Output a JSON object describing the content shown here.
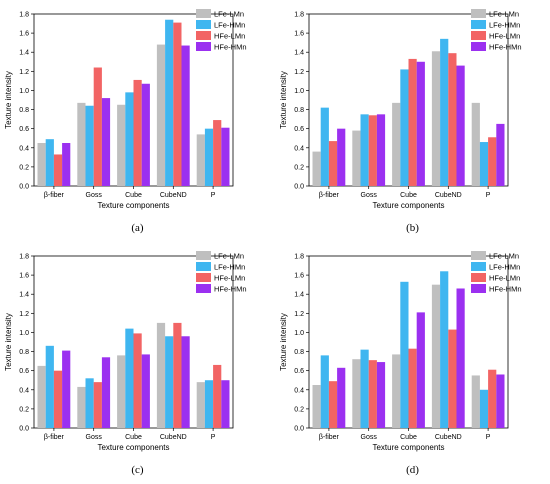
{
  "figure": {
    "panels": [
      {
        "label": "(a)"
      },
      {
        "label": "(b)"
      },
      {
        "label": "(c)"
      },
      {
        "label": "(d)"
      }
    ]
  },
  "chart_data": [
    {
      "type": "bar",
      "title": "",
      "xlabel": "Texture components",
      "ylabel": "Texture intensity",
      "ylim": [
        0,
        1.8
      ],
      "yticks": [
        "0.0",
        "0.2",
        "0.4",
        "0.6",
        "0.8",
        "1.0",
        "1.2",
        "1.4",
        "1.6",
        "1.8"
      ],
      "categories": [
        "β-fiber",
        "Goss",
        "Cube",
        "CubeND",
        "P"
      ],
      "legend_position": "top-right",
      "series": [
        {
          "name": "LFe-LMn",
          "color": "#bfbfbf",
          "values": [
            0.45,
            0.87,
            0.85,
            1.48,
            0.54
          ]
        },
        {
          "name": "LFe-HMn",
          "color": "#3fb6f0",
          "values": [
            0.49,
            0.84,
            0.98,
            1.74,
            0.6
          ]
        },
        {
          "name": "HFe-LMn",
          "color": "#f26464",
          "values": [
            0.33,
            1.24,
            1.11,
            1.71,
            0.69
          ]
        },
        {
          "name": "HFe-HMn",
          "color": "#9b30f0",
          "values": [
            0.45,
            0.92,
            1.07,
            1.47,
            0.61
          ]
        }
      ]
    },
    {
      "type": "bar",
      "title": "",
      "xlabel": "Texture components",
      "ylabel": "Texture intensity",
      "ylim": [
        0,
        1.8
      ],
      "yticks": [
        "0.0",
        "0.2",
        "0.4",
        "0.6",
        "0.8",
        "1.0",
        "1.2",
        "1.4",
        "1.6",
        "1.8"
      ],
      "categories": [
        "β-fiber",
        "Goss",
        "Cube",
        "CubeND",
        "P"
      ],
      "legend_position": "top-right",
      "series": [
        {
          "name": "LFe-LMn",
          "color": "#bfbfbf",
          "values": [
            0.36,
            0.58,
            0.87,
            1.41,
            0.87
          ]
        },
        {
          "name": "LFe-HMn",
          "color": "#3fb6f0",
          "values": [
            0.82,
            0.75,
            1.22,
            1.54,
            0.46
          ]
        },
        {
          "name": "HFe-LMn",
          "color": "#f26464",
          "values": [
            0.47,
            0.74,
            1.33,
            1.39,
            0.51
          ]
        },
        {
          "name": "HFe-HMn",
          "color": "#9b30f0",
          "values": [
            0.6,
            0.75,
            1.3,
            1.26,
            0.65
          ]
        }
      ]
    },
    {
      "type": "bar",
      "title": "",
      "xlabel": "Texture components",
      "ylabel": "Texture intensity",
      "ylim": [
        0,
        1.8
      ],
      "yticks": [
        "0.0",
        "0.2",
        "0.4",
        "0.6",
        "0.8",
        "1.0",
        "1.2",
        "1.4",
        "1.6",
        "1.8"
      ],
      "categories": [
        "β-fiber",
        "Goss",
        "Cube",
        "CubeND",
        "P"
      ],
      "legend_position": "top-right",
      "series": [
        {
          "name": "LFe-LMn",
          "color": "#bfbfbf",
          "values": [
            0.65,
            0.43,
            0.76,
            1.1,
            0.48
          ]
        },
        {
          "name": "LFe-HMn",
          "color": "#3fb6f0",
          "values": [
            0.86,
            0.52,
            1.04,
            0.96,
            0.5
          ]
        },
        {
          "name": "HFe-LMn",
          "color": "#f26464",
          "values": [
            0.6,
            0.48,
            0.99,
            1.1,
            0.66
          ]
        },
        {
          "name": "HFe-HMn",
          "color": "#9b30f0",
          "values": [
            0.81,
            0.74,
            0.77,
            0.96,
            0.5
          ]
        }
      ]
    },
    {
      "type": "bar",
      "title": "",
      "xlabel": "Texture components",
      "ylabel": "Texture intensity",
      "ylim": [
        0,
        1.8
      ],
      "yticks": [
        "0.0",
        "0.2",
        "0.4",
        "0.6",
        "0.8",
        "1.0",
        "1.2",
        "1.4",
        "1.6",
        "1.8"
      ],
      "categories": [
        "β-fiber",
        "Goss",
        "Cube",
        "CubeND",
        "P"
      ],
      "legend_position": "top-right",
      "series": [
        {
          "name": "LFe-LMn",
          "color": "#bfbfbf",
          "values": [
            0.45,
            0.72,
            0.77,
            1.5,
            0.55
          ]
        },
        {
          "name": "LFe-HMn",
          "color": "#3fb6f0",
          "values": [
            0.76,
            0.82,
            1.53,
            1.64,
            0.4
          ]
        },
        {
          "name": "HFe-LMn",
          "color": "#f26464",
          "values": [
            0.49,
            0.71,
            0.83,
            1.03,
            0.61
          ]
        },
        {
          "name": "HFe-HMn",
          "color": "#9b30f0",
          "values": [
            0.63,
            0.69,
            1.21,
            1.46,
            0.56
          ]
        }
      ]
    }
  ]
}
